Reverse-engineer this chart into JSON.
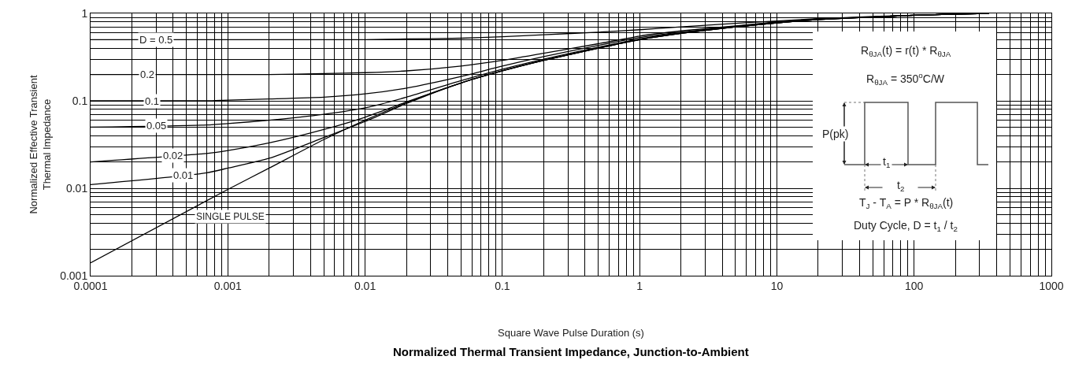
{
  "chart_data": {
    "type": "line",
    "title": "Normalized Thermal Transient Impedance, Junction-to-Ambient",
    "xlabel": "Square Wave Pulse Duration (s)",
    "ylabel": "Normalized Effective Transient\nThermal Impedance",
    "x": [
      0.0001,
      0.0007,
      0.001,
      0.002,
      0.005,
      0.01,
      0.02,
      0.05,
      0.1,
      0.2,
      0.5,
      1,
      2,
      5,
      10,
      20,
      50,
      100,
      200,
      350
    ],
    "series": [
      {
        "name": "D = 0.5",
        "color": "#000000",
        "values": [
          0.5,
          0.5,
          0.5,
          0.5,
          0.5,
          0.5,
          0.51,
          0.52,
          0.54,
          0.57,
          0.61,
          0.65,
          0.7,
          0.77,
          0.82,
          0.87,
          0.92,
          0.95,
          0.98,
          1
        ]
      },
      {
        "name": "0.2",
        "color": "#000000",
        "values": [
          0.2,
          0.2,
          0.2,
          0.2,
          0.205,
          0.21,
          0.22,
          0.25,
          0.29,
          0.35,
          0.45,
          0.55,
          0.63,
          0.72,
          0.8,
          0.86,
          0.91,
          0.95,
          0.98,
          1
        ]
      },
      {
        "name": "0.1",
        "color": "#000000",
        "values": [
          0.1,
          0.1,
          0.102,
          0.105,
          0.11,
          0.12,
          0.14,
          0.19,
          0.25,
          0.32,
          0.43,
          0.53,
          0.61,
          0.71,
          0.79,
          0.86,
          0.91,
          0.95,
          0.98,
          1
        ]
      },
      {
        "name": "0.05",
        "color": "#000000",
        "values": [
          0.05,
          0.053,
          0.055,
          0.06,
          0.07,
          0.083,
          0.11,
          0.17,
          0.23,
          0.3,
          0.41,
          0.51,
          0.6,
          0.7,
          0.78,
          0.85,
          0.91,
          0.95,
          0.98,
          1
        ]
      },
      {
        "name": "0.02",
        "color": "#000000",
        "values": [
          0.02,
          0.025,
          0.027,
          0.033,
          0.047,
          0.065,
          0.097,
          0.16,
          0.22,
          0.29,
          0.4,
          0.5,
          0.59,
          0.7,
          0.78,
          0.85,
          0.91,
          0.95,
          0.98,
          1
        ]
      },
      {
        "name": "0.01",
        "color": "#000000",
        "values": [
          0.011,
          0.015,
          0.017,
          0.022,
          0.038,
          0.058,
          0.093,
          0.16,
          0.22,
          0.29,
          0.4,
          0.5,
          0.59,
          0.7,
          0.78,
          0.85,
          0.91,
          0.95,
          0.98,
          1
        ]
      },
      {
        "name": "SINGLE PULSE",
        "color": "#000000",
        "values": [
          0.0014,
          0.0072,
          0.0097,
          0.017,
          0.036,
          0.06,
          0.095,
          0.16,
          0.22,
          0.29,
          0.4,
          0.5,
          0.59,
          0.7,
          0.78,
          0.85,
          0.91,
          0.95,
          0.98,
          1
        ]
      }
    ],
    "log": "xy",
    "xlim": [
      0.0001,
      1000
    ],
    "ylim": [
      0.001,
      1
    ],
    "xticks": [
      0.0001,
      0.001,
      0.01,
      0.1,
      1,
      10,
      100,
      1000
    ],
    "yticks": [
      0.001,
      0.01,
      0.1,
      1
    ],
    "grid": true,
    "legend": false,
    "marker": "none",
    "line_style": "solid",
    "annotations": [
      "R$_{θJA}$(t) = r(t) * R$_{θJA}$",
      "R$_{θJA}$ = 350$^{o}$C/W",
      "P(pk)",
      "t$_{1}$",
      "t$_{2}$",
      "T$_{J}$ - T$_{A}$ = P * R$_{θJA}$(t)",
      "Duty Cycle, D = t$_{1}$ / t$_{2}$"
    ]
  }
}
